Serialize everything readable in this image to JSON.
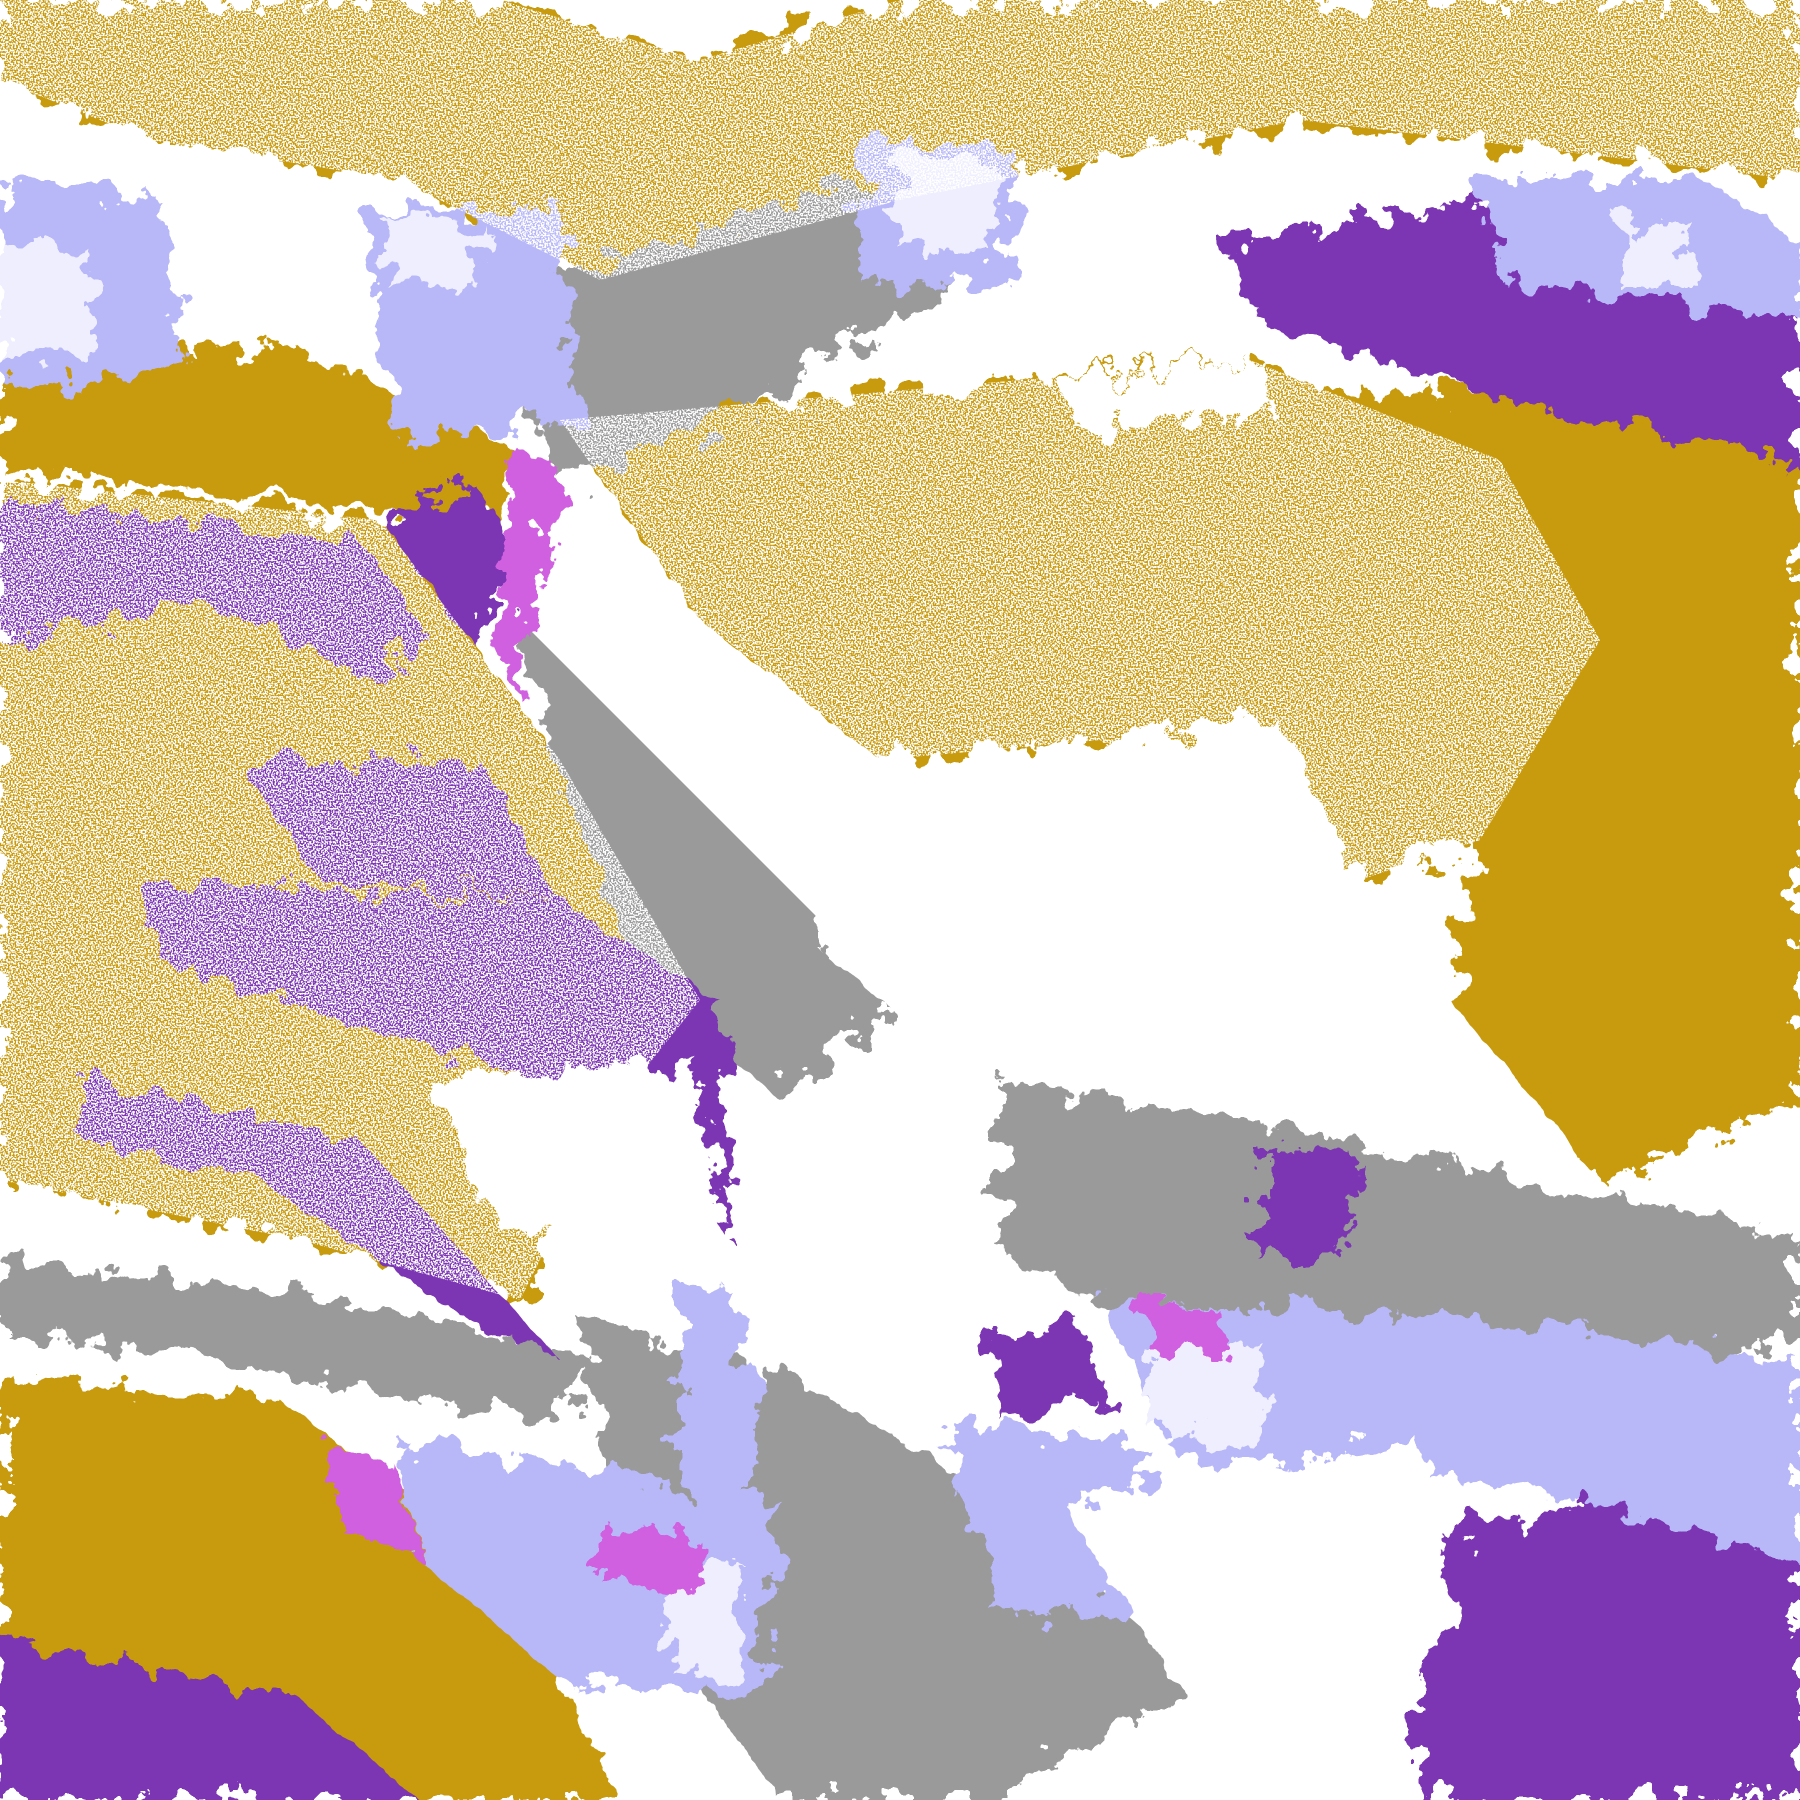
{
  "map": {
    "type": "satellite cloud classification image",
    "palette": {
      "clear": "#ffffff",
      "low_cloud": "#c89a08",
      "mid_cloud": "#7b35b3",
      "high_thin": "#9a9a9a",
      "high_thick": "#b8b8f8",
      "deep_convective": "#eeeeff",
      "mixed": "#d060e0"
    }
  }
}
